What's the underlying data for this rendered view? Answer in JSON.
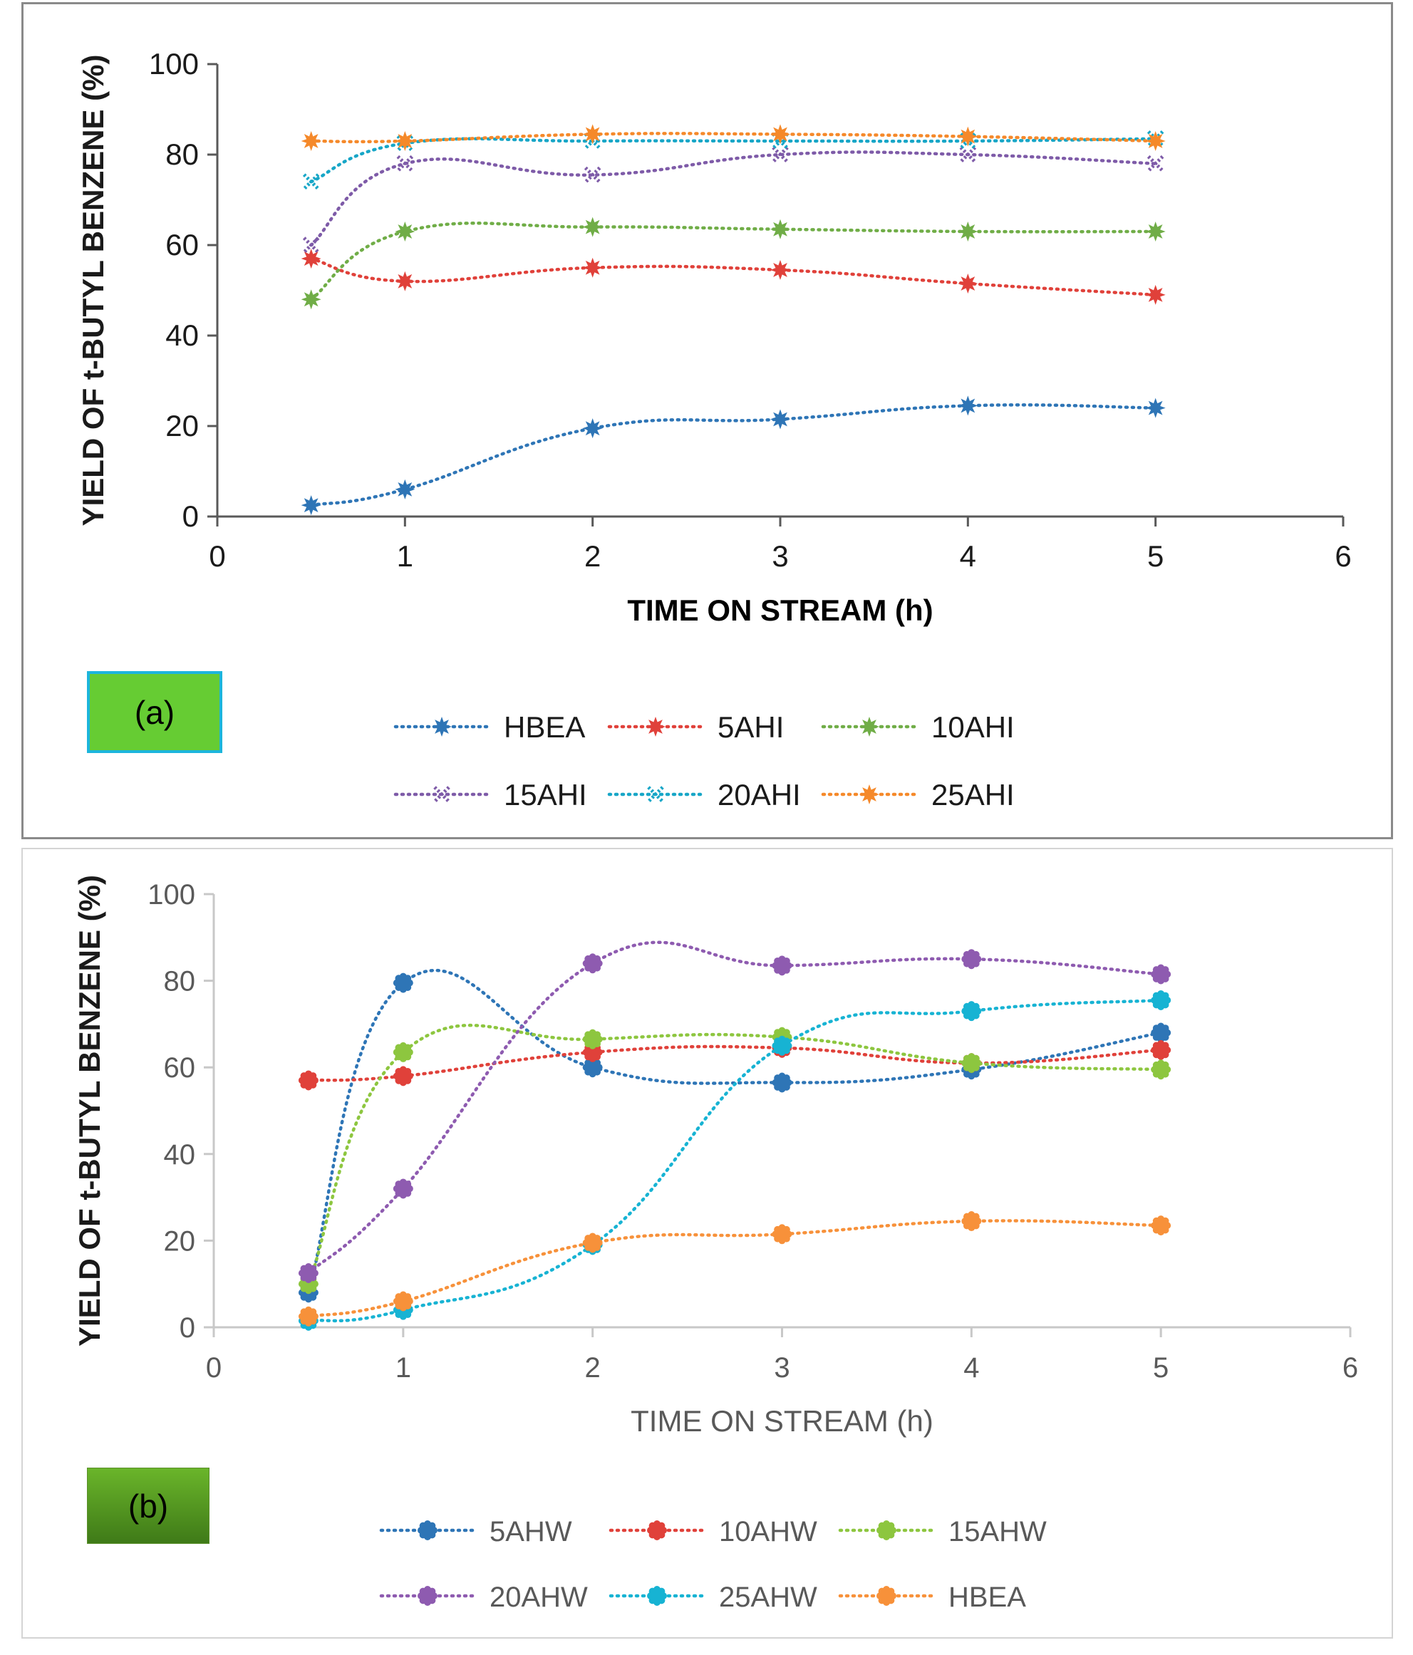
{
  "chart_data": [
    {
      "type": "line",
      "panel_label": "(a)",
      "xlabel": "TIME ON STREAM (h)",
      "ylabel": "YIELD OF t-BUTYL BENZENE (%)",
      "xlim": [
        0,
        6
      ],
      "ylim": [
        0,
        100
      ],
      "xticks": [
        0,
        1,
        2,
        3,
        4,
        5,
        6
      ],
      "yticks": [
        0,
        20,
        40,
        60,
        80,
        100
      ],
      "x": [
        0.5,
        1,
        2,
        3,
        4,
        5
      ],
      "series": [
        {
          "name": "HBEA",
          "color": "#2e75b6",
          "values": [
            2.5,
            6,
            19.5,
            21.5,
            24.5,
            24
          ]
        },
        {
          "name": "5AHI",
          "color": "#e0413a",
          "values": [
            57,
            52,
            55,
            54.5,
            51.5,
            49
          ]
        },
        {
          "name": "10AHI",
          "color": "#70ad47",
          "values": [
            48,
            63,
            64,
            63.5,
            63,
            63
          ]
        },
        {
          "name": "15AHI",
          "color": "#7e5ba8",
          "values": [
            60,
            78,
            75.5,
            80,
            80,
            78
          ]
        },
        {
          "name": "20AHI",
          "color": "#17a6c7",
          "values": [
            74,
            82.5,
            83,
            83,
            83,
            83.5
          ]
        },
        {
          "name": "25AHI",
          "color": "#f5892a",
          "values": [
            83,
            83,
            84.5,
            84.5,
            84,
            83
          ]
        }
      ]
    },
    {
      "type": "line",
      "panel_label": "(b)",
      "xlabel": "TIME ON STREAM (h)",
      "ylabel": "YIELD OF t-BUTYL BENZENE (%)",
      "xlim": [
        0,
        6
      ],
      "ylim": [
        0,
        100
      ],
      "xticks": [
        0,
        1,
        2,
        3,
        4,
        5,
        6
      ],
      "yticks": [
        0,
        20,
        40,
        60,
        80,
        100
      ],
      "x": [
        0.5,
        1,
        2,
        3,
        4,
        5
      ],
      "series": [
        {
          "name": "5AHW",
          "color": "#2e75b6",
          "values": [
            8,
            79.5,
            60,
            56.5,
            59.5,
            68
          ]
        },
        {
          "name": "10AHW",
          "color": "#e0413a",
          "values": [
            57,
            58,
            63.5,
            64.5,
            61,
            64
          ]
        },
        {
          "name": "15AHW",
          "color": "#8dc63f",
          "values": [
            10,
            63.5,
            66.5,
            67,
            61,
            59.5
          ]
        },
        {
          "name": "20AHW",
          "color": "#8e5bb0",
          "values": [
            12.5,
            32,
            84,
            83.5,
            85,
            81.5
          ]
        },
        {
          "name": "25AHW",
          "color": "#17b3d3",
          "values": [
            1.5,
            4,
            19,
            65,
            73,
            75.5
          ]
        },
        {
          "name": "HBEA",
          "color": "#f7913a",
          "values": [
            2.5,
            6,
            19.5,
            21.5,
            24.5,
            23.5
          ]
        }
      ]
    }
  ]
}
